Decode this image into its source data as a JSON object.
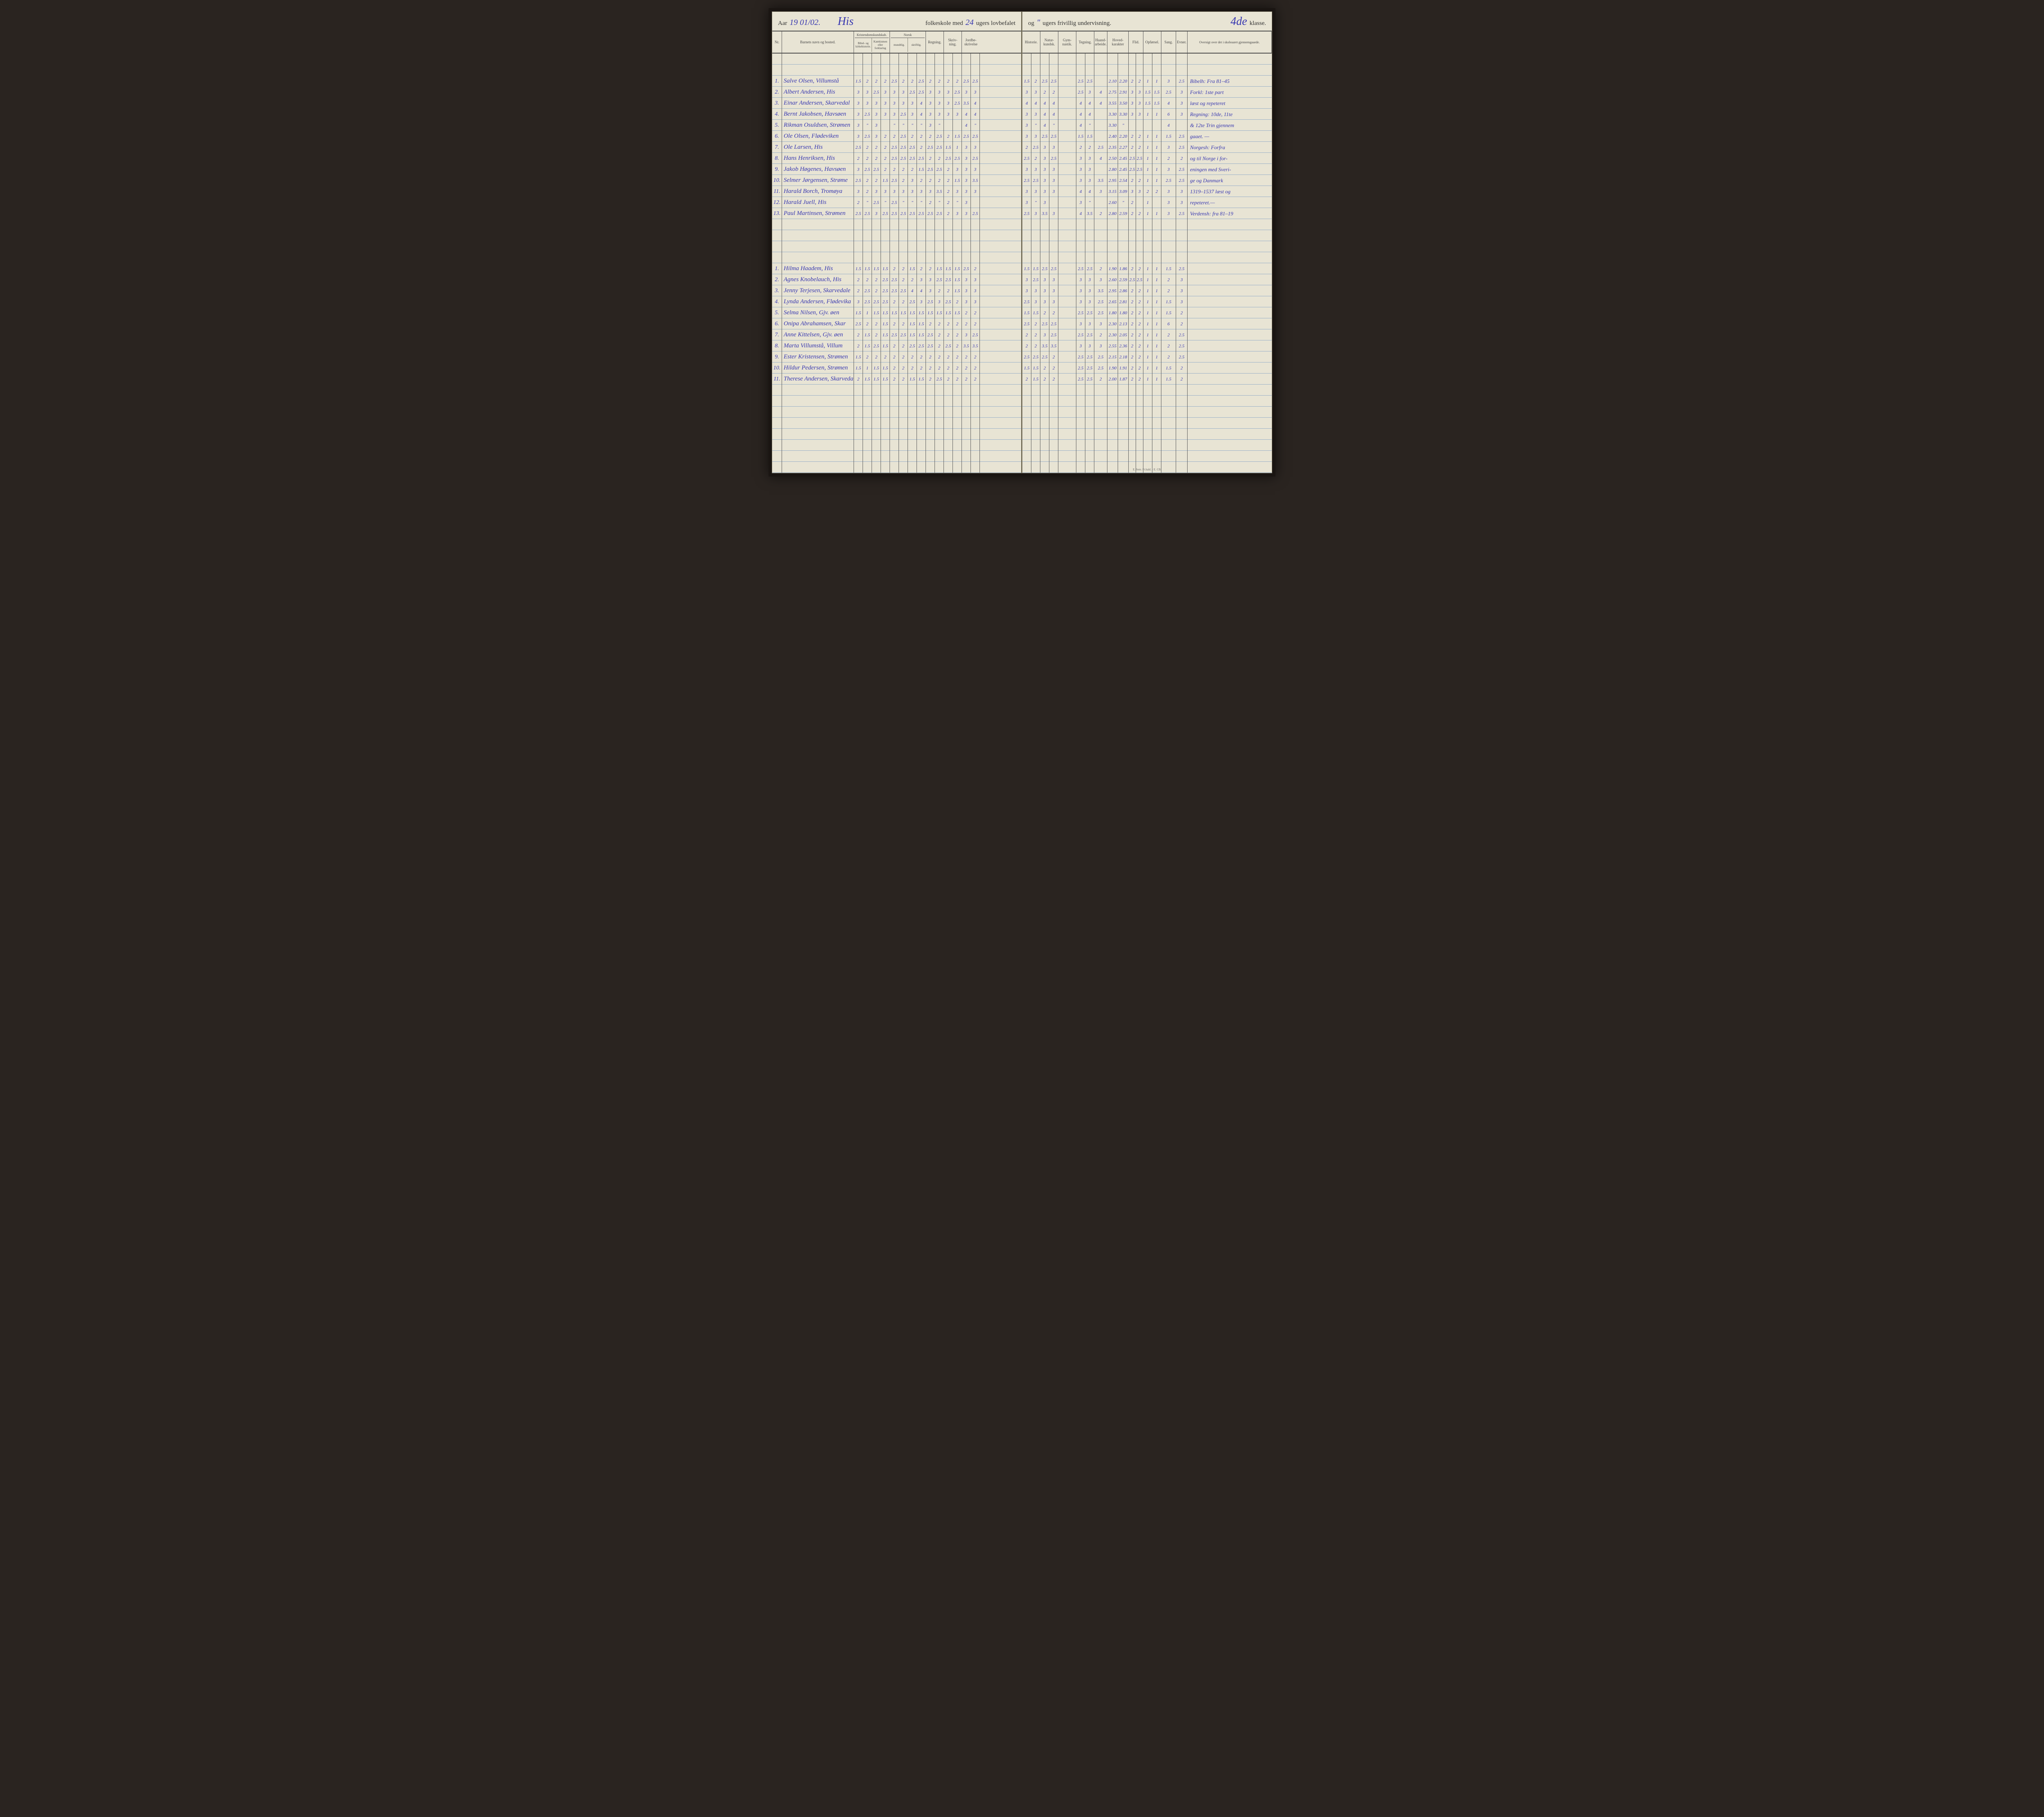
{
  "colors": {
    "page_bg": "#e8e4d4",
    "ink_handwriting": "#3838b0",
    "ink_printed": "#333333",
    "rule_line": "#9ab0c8",
    "border": "#5a5a5a",
    "book_cover": "#2a2420"
  },
  "header": {
    "aar_label": "Aar",
    "aar_value": "19 01/02.",
    "school": "His",
    "line1_mid": "folkeskole med",
    "weeks_mandatory": "24",
    "line1_end": "ugers lovbefalet",
    "line2_start": "og",
    "weeks_optional": "\"",
    "line2_end": "ugers frivillig undervisning.",
    "klasse_value": "4de",
    "klasse_label": "klasse."
  },
  "columns_left": {
    "nr": "Nr.",
    "name": "Barnets navn og bosted.",
    "kristen_top": "Kristendomskundskab.",
    "kristen_a": "Bibel- og kirkehistorie.",
    "kristen_b": "Katekismen eller forklaring",
    "norsk_top": "Norsk",
    "norsk_a": "mundtlig.",
    "norsk_b": "skriftlig.",
    "regning": "Regning.",
    "skrivning": "Skriv-\nning.",
    "jord": "Jordbe-\nskrivelse"
  },
  "columns_right": {
    "historie": "Historie.",
    "natur": "Natur-\nkundsk.",
    "gym": "Gym-\nnastik.",
    "tegning": "Tegning.",
    "haand": "Haand-\narbeide.",
    "hoved": "Hoved-\nkarakter",
    "flid": "Flid.",
    "opforsel": "Opførsel.",
    "sang": "Sang.",
    "evner": "Evner.",
    "oversigt": "Oversigt over det i\nskoleaaret gjennemgaaede."
  },
  "students_a": [
    {
      "nr": "1",
      "name": "Salve Olsen, Villumstå",
      "l": [
        "1.5",
        "2",
        "2",
        "2",
        "2.5",
        "2",
        "2",
        "2.5",
        "2",
        "2",
        "2",
        "2",
        "2.5",
        "2.5"
      ],
      "r": [
        "1.5",
        "2",
        "2.5",
        "2.5",
        "",
        "2.5",
        "2.5",
        "",
        "2.10",
        "2.20",
        "2",
        "2",
        "1",
        "1",
        "3",
        "2.5"
      ],
      "note": "Bibelh: Fra 81–45"
    },
    {
      "nr": "2",
      "name": "Albert Andersen, His",
      "l": [
        "3",
        "3",
        "2.5",
        "3",
        "3",
        "3",
        "2.5",
        "2.5",
        "3",
        "3",
        "3",
        "2.5",
        "3",
        "3"
      ],
      "r": [
        "3",
        "3",
        "2",
        "2",
        "",
        "2.5",
        "3",
        "4",
        "2.75",
        "2.91",
        "3",
        "3",
        "1.5",
        "1.5",
        "2.5",
        "3"
      ],
      "note": "Forkl: 1ste part"
    },
    {
      "nr": "3",
      "name": "Einar Andersen, Skarvedal",
      "l": [
        "3",
        "3",
        "3",
        "3",
        "3",
        "3",
        "3",
        "4",
        "3",
        "3",
        "3",
        "2.5",
        "3.5",
        "4"
      ],
      "r": [
        "4",
        "4",
        "4",
        "4",
        "",
        "4",
        "4",
        "4",
        "3.55",
        "3.50",
        "3",
        "3",
        "1.5",
        "1.5",
        "4",
        "3"
      ],
      "note": "læst og repeteret"
    },
    {
      "nr": "4",
      "name": "Bernt Jakobsen, Havsøen",
      "l": [
        "3",
        "2.5",
        "3",
        "3",
        "3",
        "2.5",
        "3",
        "4",
        "3",
        "3",
        "3",
        "3",
        "4",
        "4"
      ],
      "r": [
        "3",
        "3",
        "4",
        "4",
        "",
        "4",
        "4",
        "",
        "3.30",
        "3.30",
        "3",
        "3",
        "1",
        "1",
        "6",
        "3"
      ],
      "note": "Regning: 10de, 11te"
    },
    {
      "nr": "5",
      "name": "Rikman Osuldsen, Strømen",
      "l": [
        "3",
        "\"",
        "3",
        "",
        "\"",
        "\"",
        "\"",
        "\"",
        "3",
        "\"",
        "",
        "",
        "4",
        "\""
      ],
      "r": [
        "3",
        "\"",
        "4",
        "\"",
        "",
        "4",
        "\"",
        "",
        "3.30",
        "\"",
        "",
        "",
        "",
        "",
        "4",
        ""
      ],
      "note": "& 12te Trin gjennem"
    },
    {
      "nr": "6",
      "name": "Ole Olsen, Flødeviken",
      "l": [
        "3",
        "2.5",
        "3",
        "2",
        "2",
        "2.5",
        "2",
        "2",
        "2",
        "2.5",
        "2",
        "1.5",
        "2.5",
        "2.5"
      ],
      "r": [
        "3",
        "3",
        "2.5",
        "2.5",
        "",
        "1.5",
        "1.5",
        "",
        "2.40",
        "2.20",
        "2",
        "2",
        "1",
        "1",
        "1.5",
        "2.5"
      ],
      "note": "gaaet. —"
    },
    {
      "nr": "7",
      "name": "Ole Larsen, His",
      "l": [
        "2.5",
        "2",
        "2",
        "2",
        "2.5",
        "2.5",
        "2.5",
        "2",
        "2.5",
        "2.5",
        "1.5",
        "1",
        "3",
        "3"
      ],
      "r": [
        "2",
        "2.5",
        "3",
        "3",
        "",
        "2",
        "2",
        "2.5",
        "2.35",
        "2.27",
        "2",
        "2",
        "1",
        "1",
        "3",
        "2.5"
      ],
      "note": "Norgesh: Forfra"
    },
    {
      "nr": "8",
      "name": "Hans Henriksen, His",
      "l": [
        "2",
        "2",
        "2",
        "2",
        "2.5",
        "2.5",
        "2.5",
        "2.5",
        "2",
        "2",
        "2.5",
        "2.5",
        "3",
        "2.5"
      ],
      "r": [
        "2.5",
        "2",
        "3",
        "2.5",
        "",
        "3",
        "3",
        "4",
        "2.50",
        "2.45",
        "2.5",
        "2.5",
        "1",
        "1",
        "2",
        "2"
      ],
      "note": "og til Norge i for-"
    },
    {
      "nr": "9",
      "name": "Jakob Høgenes, Havsøen",
      "l": [
        "3",
        "2.5",
        "2.5",
        "2",
        "2",
        "2",
        "2",
        "1.5",
        "2.5",
        "2.5",
        "2",
        "3",
        "3",
        "3"
      ],
      "r": [
        "3",
        "3",
        "3",
        "3",
        "",
        "3",
        "3",
        "",
        "2.80",
        "2.45",
        "2.5",
        "2.5",
        "1",
        "1",
        "3",
        "2.5"
      ],
      "note": "eningen med Sveri-"
    },
    {
      "nr": "10",
      "name": "Selmer Jørgensen, Strøme",
      "l": [
        "2.5",
        "2",
        "2",
        "1.5",
        "2.5",
        "2",
        "3",
        "2",
        "2",
        "2",
        "2",
        "1.5",
        "3",
        "3.5"
      ],
      "r": [
        "2.5",
        "2.5",
        "3",
        "3",
        "",
        "3",
        "3",
        "3.5",
        "2.95",
        "2.54",
        "2",
        "2",
        "1",
        "1",
        "2.5",
        "2.5"
      ],
      "note": "ge og Danmark"
    },
    {
      "nr": "11",
      "name": "Harald Borch, Tromøya",
      "l": [
        "3",
        "2",
        "3",
        "3",
        "3",
        "3",
        "3",
        "3",
        "3",
        "3.5",
        "2",
        "3",
        "3",
        "3"
      ],
      "r": [
        "3",
        "3",
        "3",
        "3",
        "",
        "4",
        "4",
        "3",
        "3.15",
        "3.09",
        "3",
        "3",
        "2",
        "2",
        "3",
        "3"
      ],
      "note": "1319–1537 læst og"
    },
    {
      "nr": "12",
      "name": "Harald Juell, His",
      "l": [
        "2",
        "\"",
        "2.5",
        "\"",
        "2.5",
        "\"",
        "\"",
        "\"",
        "2",
        "\"",
        "2",
        "\"",
        "3",
        ""
      ],
      "r": [
        "3",
        "\"",
        "3",
        "",
        "",
        "3",
        "\"",
        "",
        "2.60",
        "\"",
        "2",
        "",
        "1",
        "",
        "3",
        "3"
      ],
      "note": "repeteret.—"
    },
    {
      "nr": "13",
      "name": "Paul Martinsen, Strømen",
      "l": [
        "2.5",
        "2.5",
        "3",
        "2.5",
        "2.5",
        "2.5",
        "2.5",
        "2.5",
        "2.5",
        "2.5",
        "2",
        "3",
        "3",
        "2.5"
      ],
      "r": [
        "2.5",
        "3",
        "3.5",
        "3",
        "",
        "4",
        "3.5",
        "2",
        "2.80",
        "2.59",
        "2",
        "2",
        "1",
        "1",
        "3",
        "2.5"
      ],
      "note": "Verdensh: fra 81–19"
    }
  ],
  "students_b": [
    {
      "nr": "1",
      "name": "Hilma Haadem, His",
      "l": [
        "1.5",
        "1.5",
        "1.5",
        "1.5",
        "2",
        "2",
        "1.5",
        "2",
        "2",
        "1.5",
        "1.5",
        "1.5",
        "2.5",
        "2"
      ],
      "r": [
        "1.5",
        "1.5",
        "2.5",
        "2.5",
        "",
        "2.5",
        "2.5",
        "2",
        "1.90",
        "1.86",
        "2",
        "2",
        "1",
        "1",
        "1.5",
        "2.5"
      ],
      "note": ""
    },
    {
      "nr": "2",
      "name": "Agnes Knobelauch, His",
      "l": [
        "2",
        "2",
        "2",
        "2.5",
        "2.5",
        "2",
        "2",
        "3",
        "3",
        "2.5",
        "2.5",
        "1.5",
        "3",
        "3"
      ],
      "r": [
        "3",
        "2.5",
        "3",
        "3",
        "",
        "3",
        "3",
        "3",
        "2.60",
        "2.59",
        "2.5",
        "2.5",
        "1",
        "1",
        "2",
        "3"
      ],
      "note": ""
    },
    {
      "nr": "3",
      "name": "Jenny Terjesen, Skarvedale",
      "l": [
        "2",
        "2.5",
        "2",
        "2.5",
        "2.5",
        "2.5",
        "4",
        "4",
        "3",
        "2",
        "2",
        "1.5",
        "3",
        "3"
      ],
      "r": [
        "3",
        "3",
        "3",
        "3",
        "",
        "3",
        "3",
        "3.5",
        "2.95",
        "2.86",
        "2",
        "2",
        "1",
        "1",
        "2",
        "3"
      ],
      "note": ""
    },
    {
      "nr": "4",
      "name": "Lynda Andersen, Flødevika",
      "l": [
        "3",
        "2.5",
        "2.5",
        "2.5",
        "2",
        "2",
        "2.5",
        "3",
        "2.5",
        "3",
        "2.5",
        "2",
        "3",
        "3"
      ],
      "r": [
        "2.5",
        "3",
        "3",
        "3",
        "",
        "3",
        "3",
        "2.5",
        "2.65",
        "2.81",
        "2",
        "2",
        "1",
        "1",
        "1.5",
        "3"
      ],
      "note": ""
    },
    {
      "nr": "5",
      "name": "Selma Nilsen, Gjv. øen",
      "l": [
        "1.5",
        "1",
        "1.5",
        "1.5",
        "1.5",
        "1.5",
        "1.5",
        "1.5",
        "1.5",
        "1.5",
        "1.5",
        "1.5",
        "2",
        "2"
      ],
      "r": [
        "1.5",
        "1.5",
        "2",
        "2",
        "",
        "2.5",
        "2.5",
        "2.5",
        "1.80",
        "1.80",
        "2",
        "2",
        "1",
        "1",
        "1.5",
        "2"
      ],
      "note": ""
    },
    {
      "nr": "6",
      "name": "Onipa Abrahamsen, Skar",
      "l": [
        "2.5",
        "2",
        "2",
        "1.5",
        "2",
        "2",
        "1.5",
        "1.5",
        "2",
        "2",
        "2",
        "2",
        "2",
        "2"
      ],
      "r": [
        "2.5",
        "2",
        "2.5",
        "2.5",
        "",
        "3",
        "3",
        "3",
        "2.30",
        "2.13",
        "2",
        "2",
        "1",
        "1",
        "6",
        "2"
      ],
      "note": ""
    },
    {
      "nr": "7",
      "name": "Anne Kittelsen, Gjv. øen",
      "l": [
        "2",
        "1.5",
        "2",
        "1.5",
        "2.5",
        "2.5",
        "1.5",
        "1.5",
        "2.5",
        "2",
        "2",
        "2",
        "3",
        "2.5"
      ],
      "r": [
        "2",
        "2",
        "3",
        "2.5",
        "",
        "2.5",
        "2.5",
        "2",
        "2.30",
        "2.05",
        "2",
        "2",
        "1",
        "1",
        "2",
        "2.5"
      ],
      "note": ""
    },
    {
      "nr": "8",
      "name": "Marta Villumstå, Villum",
      "l": [
        "2",
        "1.5",
        "2.5",
        "1.5",
        "2",
        "2",
        "2.5",
        "2.5",
        "2.5",
        "2",
        "2.5",
        "2",
        "3.5",
        "3.5"
      ],
      "r": [
        "2",
        "2",
        "3.5",
        "3.5",
        "",
        "3",
        "3",
        "3",
        "2.55",
        "2.36",
        "2",
        "2",
        "1",
        "1",
        "2",
        "2.5"
      ],
      "note": ""
    },
    {
      "nr": "9",
      "name": "Ester Kristensen, Strømen",
      "l": [
        "1.5",
        "2",
        "2",
        "2",
        "2",
        "2",
        "2",
        "2",
        "2",
        "2",
        "2",
        "2",
        "2",
        "2"
      ],
      "r": [
        "2.5",
        "2.5",
        "2.5",
        "2",
        "",
        "2.5",
        "2.5",
        "2.5",
        "2.15",
        "2.18",
        "2",
        "2",
        "1",
        "1",
        "2",
        "2.5"
      ],
      "note": ""
    },
    {
      "nr": "10",
      "name": "Hildur Pedersen, Strømen",
      "l": [
        "1.5",
        "1",
        "1.5",
        "1.5",
        "2",
        "2",
        "2",
        "2",
        "2",
        "2",
        "2",
        "2",
        "2",
        "2"
      ],
      "r": [
        "1.5",
        "1.5",
        "2",
        "2",
        "",
        "2.5",
        "2.5",
        "2.5",
        "1.90",
        "1.91",
        "2",
        "2",
        "1",
        "1",
        "1.5",
        "2"
      ],
      "note": ""
    },
    {
      "nr": "11",
      "name": "Therese Andersen, Skarveda",
      "l": [
        "2",
        "1.5",
        "1.5",
        "1.5",
        "2",
        "2",
        "1.5",
        "1.5",
        "2",
        "2.5",
        "2",
        "2",
        "2",
        "2"
      ],
      "r": [
        "2",
        "1.5",
        "2",
        "2",
        "",
        "2.5",
        "2.5",
        "2",
        "2.00",
        "1.87",
        "2",
        "2",
        "1",
        "1",
        "1.5",
        "2"
      ],
      "note": ""
    }
  ],
  "footer": "E. Sem. Fr.hald. - E. CB."
}
